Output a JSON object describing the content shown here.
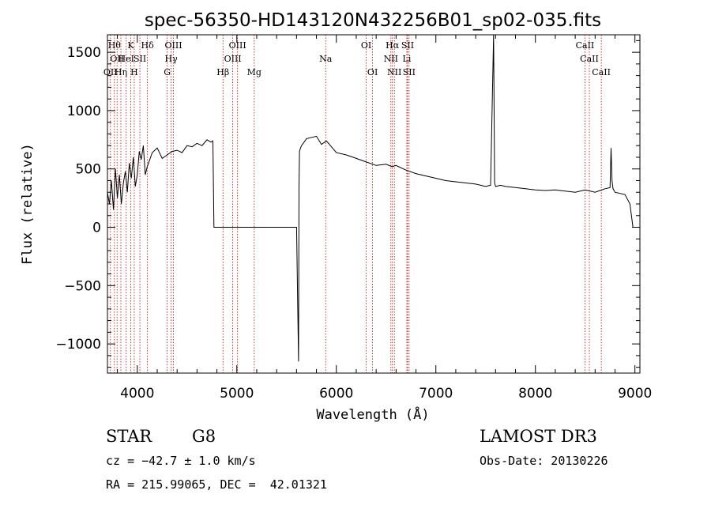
{
  "chart_data": {
    "type": "line",
    "title": "spec-56350-HD143120N432256B01_sp02-035.fits",
    "xlabel": "Wavelength (Å)",
    "ylabel": "Flux (relative)",
    "xlim": [
      3700,
      9050
    ],
    "ylim": [
      -1250,
      1650
    ],
    "x_ticks": [
      4000,
      5000,
      6000,
      7000,
      8000,
      9000
    ],
    "y_ticks": [
      -1000,
      -500,
      0,
      500,
      1000,
      1500
    ],
    "grid": false,
    "line_color": "#000000",
    "marker_color": "#cc0000",
    "series": [
      {
        "x": [
          3700,
          3720,
          3740,
          3760,
          3780,
          3800,
          3820,
          3840,
          3860,
          3880,
          3900,
          3920,
          3940,
          3960,
          3980,
          4000,
          4020,
          4040,
          4060,
          4080,
          4100,
          4150,
          4200,
          4250,
          4300,
          4350,
          4400,
          4450,
          4500,
          4550,
          4600,
          4650,
          4700,
          4740,
          4760,
          4770,
          4800,
          5000,
          5200,
          5400,
          5600,
          5620,
          5625,
          5630,
          5640,
          5650,
          5700,
          5800,
          5850,
          5900,
          5950,
          6000,
          6100,
          6200,
          6300,
          6400,
          6500,
          6560,
          6600,
          6700,
          6800,
          6900,
          7000,
          7100,
          7200,
          7300,
          7400,
          7500,
          7550,
          7580,
          7590,
          7600,
          7650,
          7700,
          7800,
          7900,
          8000,
          8100,
          8200,
          8300,
          8400,
          8500,
          8600,
          8700,
          8750,
          8760,
          8770,
          8780,
          8800,
          8900,
          8950,
          8980
        ],
        "y": [
          300,
          200,
          400,
          150,
          500,
          250,
          450,
          200,
          380,
          480,
          300,
          550,
          420,
          600,
          350,
          450,
          650,
          580,
          700,
          450,
          520,
          640,
          680,
          590,
          620,
          650,
          660,
          640,
          700,
          690,
          720,
          700,
          750,
          730,
          740,
          0,
          0,
          0,
          0,
          0,
          0,
          -1150,
          350,
          650,
          680,
          700,
          760,
          780,
          710,
          740,
          690,
          640,
          620,
          590,
          560,
          530,
          540,
          520,
          530,
          490,
          460,
          440,
          420,
          400,
          390,
          380,
          370,
          350,
          360,
          1650,
          380,
          350,
          360,
          350,
          340,
          330,
          320,
          315,
          320,
          310,
          300,
          320,
          300,
          330,
          340,
          680,
          400,
          330,
          300,
          280,
          200,
          0
        ]
      }
    ],
    "line_markers": [
      {
        "wl": 3730,
        "label": "OII",
        "row": 2
      },
      {
        "wl": 3770,
        "label": "Hθ",
        "row": 0
      },
      {
        "wl": 3797,
        "label": "OII",
        "row": 1
      },
      {
        "wl": 3835,
        "label": "Hη",
        "row": 2
      },
      {
        "wl": 3889,
        "label": "HeI",
        "row": 1
      },
      {
        "wl": 3934,
        "label": "K",
        "row": 0
      },
      {
        "wl": 3969,
        "label": "H",
        "row": 2
      },
      {
        "wl": 4026,
        "label": "SII",
        "row": 1
      },
      {
        "wl": 4102,
        "label": "Hδ",
        "row": 0
      },
      {
        "wl": 4300,
        "label": "G",
        "row": 2
      },
      {
        "wl": 4340,
        "label": "Hγ",
        "row": 1
      },
      {
        "wl": 4363,
        "label": "OIII",
        "row": 0
      },
      {
        "wl": 4861,
        "label": "Hβ",
        "row": 2
      },
      {
        "wl": 4959,
        "label": "OIII",
        "row": 1
      },
      {
        "wl": 5007,
        "label": "OIII",
        "row": 0
      },
      {
        "wl": 5175,
        "label": "Mg",
        "row": 2
      },
      {
        "wl": 5893,
        "label": "Na",
        "row": 1
      },
      {
        "wl": 6300,
        "label": "OI",
        "row": 0
      },
      {
        "wl": 6364,
        "label": "OI",
        "row": 2
      },
      {
        "wl": 6548,
        "label": "NII",
        "row": 1
      },
      {
        "wl": 6563,
        "label": "Hα",
        "row": 0
      },
      {
        "wl": 6583,
        "label": "NII",
        "row": 2
      },
      {
        "wl": 6708,
        "label": "Li",
        "row": 1
      },
      {
        "wl": 6716,
        "label": "SII",
        "row": 0
      },
      {
        "wl": 6731,
        "label": "SII",
        "row": 2
      },
      {
        "wl": 8498,
        "label": "CaII",
        "row": 0
      },
      {
        "wl": 8542,
        "label": "CaII",
        "row": 1
      },
      {
        "wl": 8662,
        "label": "CaII",
        "row": 2
      }
    ]
  },
  "info": {
    "class": "STAR",
    "subclass": "G8",
    "survey": "LAMOST DR3",
    "cz": "cz = −42.7 ± 1.0 km/s",
    "obs_date": "Obs-Date: 20130226",
    "coords": "RA = 215.99065, DEC =  42.01321"
  }
}
